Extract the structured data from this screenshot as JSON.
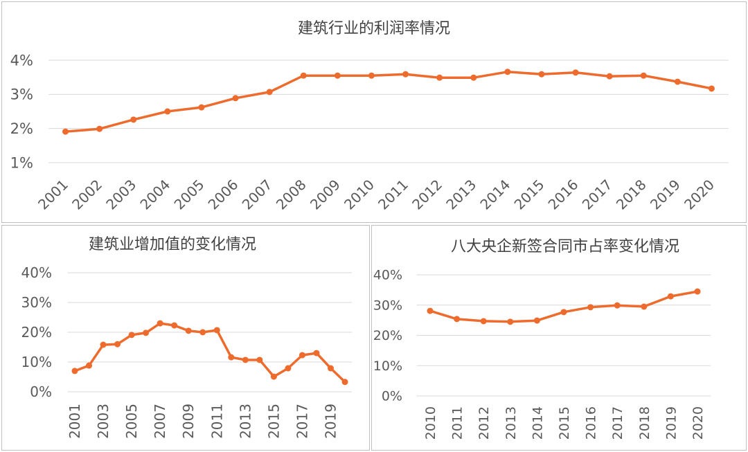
{
  "colors": {
    "series": "#EC6B2D",
    "gridline": "#D9D9D9",
    "axis_text": "#595959",
    "title_text": "#404040",
    "panel_border": "#BFBFBF"
  },
  "chart_data": [
    {
      "type": "line",
      "title": "建筑行业的利润率情况",
      "x": [
        2001,
        2002,
        2003,
        2004,
        2005,
        2006,
        2007,
        2008,
        2009,
        2010,
        2011,
        2012,
        2013,
        2014,
        2015,
        2016,
        2017,
        2018,
        2019,
        2020
      ],
      "values": [
        1.91,
        1.99,
        2.26,
        2.5,
        2.62,
        2.89,
        3.07,
        3.55,
        3.55,
        3.55,
        3.59,
        3.49,
        3.49,
        3.66,
        3.59,
        3.64,
        3.53,
        3.55,
        3.37,
        3.17
      ],
      "x_tick_labels": [
        "2001",
        "2002",
        "2003",
        "2004",
        "2005",
        "2006",
        "2007",
        "2008",
        "2009",
        "2010",
        "2011",
        "2012",
        "2013",
        "2014",
        "2015",
        "2016",
        "2017",
        "2018",
        "2019",
        "2020"
      ],
      "y_tick_labels": [
        "1%",
        "2%",
        "3%",
        "4%"
      ],
      "ylim": [
        1,
        4
      ],
      "grid": true
    },
    {
      "type": "line",
      "title": "建筑业增加值的变化情况",
      "x": [
        2001,
        2002,
        2003,
        2004,
        2005,
        2006,
        2007,
        2008,
        2009,
        2010,
        2011,
        2012,
        2013,
        2014,
        2015,
        2016,
        2017,
        2018,
        2019,
        2020
      ],
      "values": [
        7.0,
        8.8,
        15.8,
        16.0,
        19.1,
        19.8,
        23.0,
        22.3,
        20.5,
        20.0,
        20.7,
        11.6,
        10.7,
        10.7,
        5.1,
        7.9,
        12.3,
        13.0,
        7.9,
        3.3
      ],
      "x_tick_labels": [
        "2001",
        "2003",
        "2005",
        "2007",
        "2009",
        "2011",
        "2013",
        "2015",
        "2017",
        "2019"
      ],
      "y_tick_labels": [
        "0%",
        "10%",
        "20%",
        "30%",
        "40%"
      ],
      "ylim": [
        0,
        40
      ],
      "grid": true
    },
    {
      "type": "line",
      "title": "八大央企新签合同市占率变化情况",
      "x": [
        2010,
        2011,
        2012,
        2013,
        2014,
        2015,
        2016,
        2017,
        2018,
        2019,
        2020
      ],
      "values": [
        28.1,
        25.4,
        24.7,
        24.5,
        24.9,
        27.7,
        29.3,
        29.9,
        29.5,
        32.9,
        34.5
      ],
      "x_tick_labels": [
        "2010",
        "2011",
        "2012",
        "2013",
        "2014",
        "2015",
        "2016",
        "2017",
        "2018",
        "2019",
        "2020"
      ],
      "y_tick_labels": [
        "0%",
        "10%",
        "20%",
        "30%",
        "40%"
      ],
      "ylim": [
        0,
        40
      ],
      "grid": true
    }
  ]
}
